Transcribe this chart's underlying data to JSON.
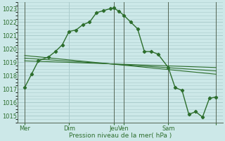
{
  "bg_color": "#cce8e8",
  "grid_color": "#aacccc",
  "line_color": "#2d6e2d",
  "axis_color": "#2d6e2d",
  "title": "Pression niveau de la mer( hPa )",
  "xlim": [
    0,
    30
  ],
  "ylim": [
    1014.5,
    1023.5
  ],
  "yticks": [
    1015,
    1016,
    1017,
    1018,
    1019,
    1020,
    1021,
    1022,
    1023
  ],
  "xtick_positions": [
    1,
    7.5,
    14,
    15.5,
    22,
    29
  ],
  "xtick_labels": [
    "Mer",
    "Dim",
    "Jeu",
    "Ven",
    "Sam",
    ""
  ],
  "vline_positions": [
    1,
    14,
    15.5,
    22,
    29
  ],
  "line1_x": [
    1,
    2,
    3,
    4.5,
    5.5,
    6.5,
    7.5,
    8.5,
    9.5,
    10.5,
    11.5,
    12.5,
    13.5,
    14.0,
    14.8,
    15.5,
    16.5,
    17.5,
    18.5,
    19.5,
    20.5,
    22,
    23,
    24,
    25,
    26,
    27,
    28,
    29
  ],
  "line1_y": [
    1017.1,
    1018.1,
    1019.1,
    1019.4,
    1019.8,
    1020.3,
    1021.3,
    1021.4,
    1021.8,
    1022.0,
    1022.7,
    1022.85,
    1023.0,
    1023.05,
    1022.8,
    1022.5,
    1022.0,
    1021.5,
    1019.8,
    1019.8,
    1019.6,
    1018.6,
    1017.1,
    1016.9,
    1015.1,
    1015.3,
    1014.9,
    1016.3,
    1016.4
  ],
  "line2_x": [
    1,
    29
  ],
  "line2_y": [
    1019.1,
    1018.6
  ],
  "line3_x": [
    1,
    29
  ],
  "line3_y": [
    1019.3,
    1018.35
  ],
  "line4_x": [
    1,
    29
  ],
  "line4_y": [
    1019.5,
    1018.1
  ]
}
